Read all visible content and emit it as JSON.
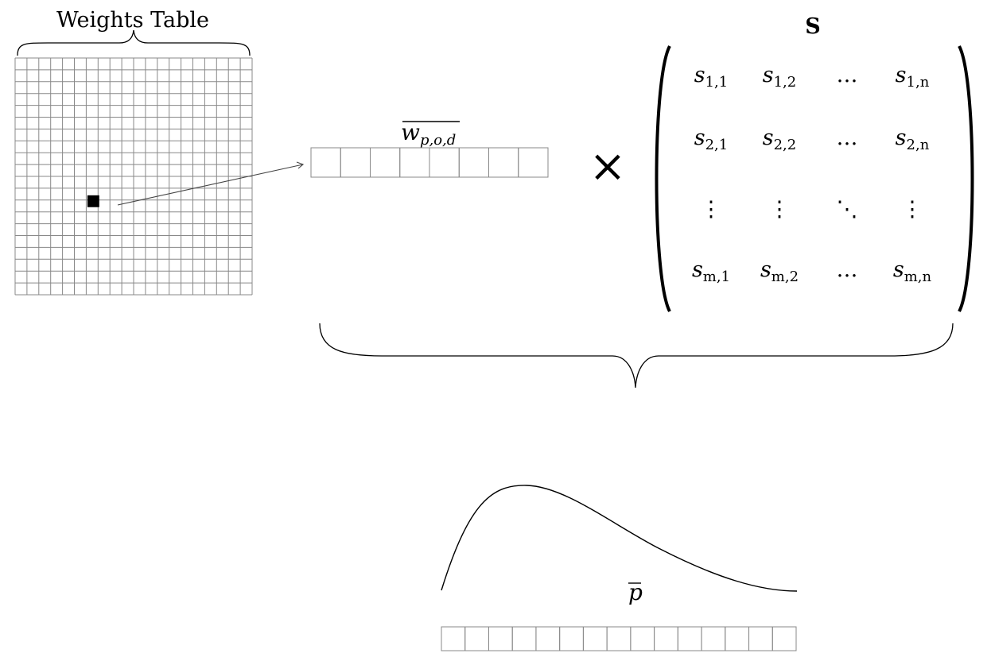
{
  "weights_table": {
    "title": "Weights Table",
    "rows": 20,
    "cols": 20,
    "highlight_cell": {
      "row": 12,
      "col": 7
    }
  },
  "weight_vector": {
    "label_base": "w",
    "label_sub": "p,o,d",
    "cells": 8
  },
  "operator": "×",
  "matrix": {
    "name": "S",
    "rows": [
      [
        {
          "b": "s",
          "s": "1,1"
        },
        {
          "b": "s",
          "s": "1,2"
        },
        {
          "b": "…",
          "s": ""
        },
        {
          "b": "s",
          "s": "1,n"
        }
      ],
      [
        {
          "b": "s",
          "s": "2,1"
        },
        {
          "b": "s",
          "s": "2,2"
        },
        {
          "b": "…",
          "s": ""
        },
        {
          "b": "s",
          "s": "2,n"
        }
      ],
      [
        {
          "b": "⋮",
          "s": ""
        },
        {
          "b": "⋮",
          "s": ""
        },
        {
          "b": "⋱",
          "s": ""
        },
        {
          "b": "⋮",
          "s": ""
        }
      ],
      [
        {
          "b": "s",
          "s": "m,1"
        },
        {
          "b": "s",
          "s": "m,2"
        },
        {
          "b": "…",
          "s": ""
        },
        {
          "b": "s",
          "s": "m,n"
        }
      ]
    ]
  },
  "output_vector": {
    "label": "p",
    "cells": 15
  }
}
